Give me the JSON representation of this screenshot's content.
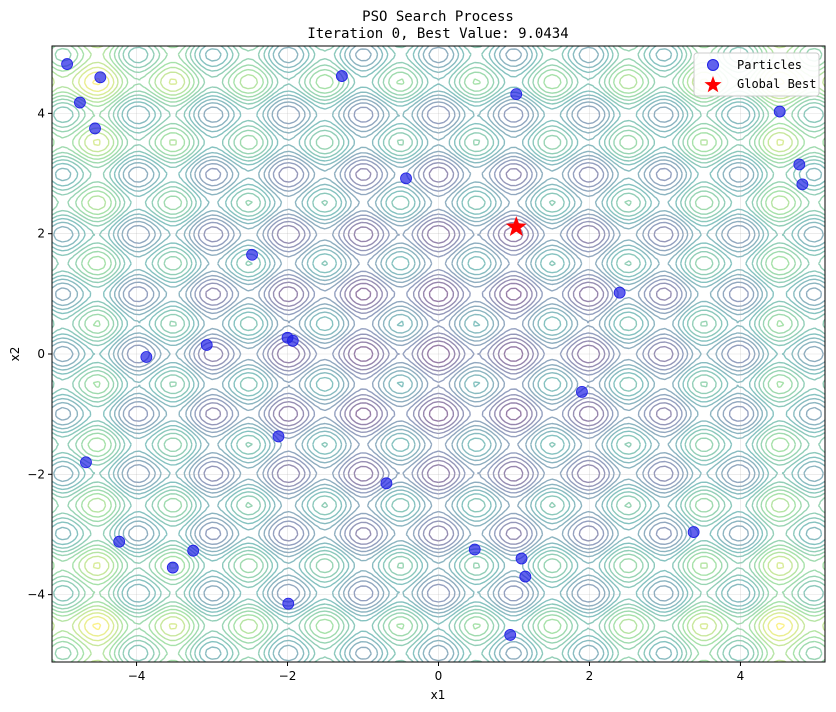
{
  "chart_data": {
    "type": "scatter",
    "title": "PSO Search Process",
    "subtitle_prefix": "Iteration ",
    "iteration": 0,
    "subtitle_mid": ", Best Value: ",
    "best_value": "9.0434",
    "xlabel": "x1",
    "ylabel": "x2",
    "xlim": [
      -5.12,
      5.12
    ],
    "ylim": [
      -5.12,
      5.12
    ],
    "xticks": [
      -4,
      -2,
      0,
      2,
      4
    ],
    "yticks": [
      -4,
      -2,
      0,
      2,
      4
    ],
    "grid": true,
    "legend_position": "top-right",
    "legend": [
      "Particles",
      "Global Best"
    ],
    "background": "contour of Rastrigin-like objective function",
    "colors": {
      "particle": "#1f1fe6",
      "global_best": "#ff0000",
      "contour_low": "#4b3b78",
      "contour_mid": "#2a9d8f",
      "contour_high": "#c9e33a"
    },
    "particles": [
      [
        -4.92,
        4.82
      ],
      [
        -4.48,
        4.6
      ],
      [
        -4.75,
        4.18
      ],
      [
        -4.55,
        3.75
      ],
      [
        -1.28,
        4.62
      ],
      [
        1.03,
        4.32
      ],
      [
        4.52,
        4.03
      ],
      [
        -0.43,
        2.92
      ],
      [
        4.78,
        3.15
      ],
      [
        4.82,
        2.82
      ],
      [
        -2.47,
        1.65
      ],
      [
        2.4,
        1.02
      ],
      [
        -2.0,
        0.27
      ],
      [
        -1.93,
        0.22
      ],
      [
        -3.07,
        0.15
      ],
      [
        -3.87,
        -0.05
      ],
      [
        1.9,
        -0.63
      ],
      [
        -2.12,
        -1.37
      ],
      [
        -4.67,
        -1.8
      ],
      [
        -0.69,
        -2.15
      ],
      [
        3.38,
        -2.96
      ],
      [
        -4.23,
        -3.12
      ],
      [
        -3.25,
        -3.27
      ],
      [
        0.48,
        -3.25
      ],
      [
        1.1,
        -3.4
      ],
      [
        -3.52,
        -3.55
      ],
      [
        1.15,
        -3.7
      ],
      [
        -1.99,
        -4.15
      ],
      [
        0.95,
        -4.67
      ]
    ],
    "global_best_position": [
      1.03,
      2.11
    ]
  }
}
